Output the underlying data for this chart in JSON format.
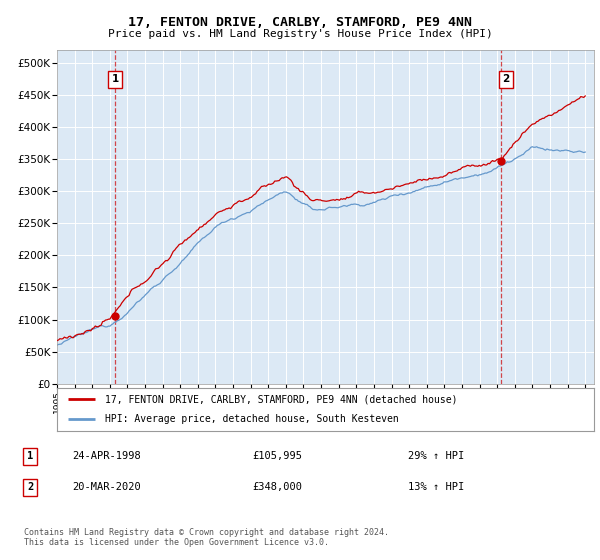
{
  "title": "17, FENTON DRIVE, CARLBY, STAMFORD, PE9 4NN",
  "subtitle": "Price paid vs. HM Land Registry's House Price Index (HPI)",
  "plot_bg_color": "#dce9f5",
  "transaction1": {
    "date": "24-APR-1998",
    "price": 105995,
    "label": "1",
    "year_x": 1998.3
  },
  "transaction2": {
    "date": "20-MAR-2020",
    "price": 348000,
    "label": "2",
    "year_x": 2020.2
  },
  "legend_line1": "17, FENTON DRIVE, CARLBY, STAMFORD, PE9 4NN (detached house)",
  "legend_line2": "HPI: Average price, detached house, South Kesteven",
  "footnote": "Contains HM Land Registry data © Crown copyright and database right 2024.\nThis data is licensed under the Open Government Licence v3.0.",
  "table_rows": [
    {
      "num": "1",
      "date": "24-APR-1998",
      "price": "£105,995",
      "info": "29% ↑ HPI"
    },
    {
      "num": "2",
      "date": "20-MAR-2020",
      "price": "£348,000",
      "info": "13% ↑ HPI"
    }
  ],
  "ylim": [
    0,
    520000
  ],
  "yticks": [
    0,
    50000,
    100000,
    150000,
    200000,
    250000,
    300000,
    350000,
    400000,
    450000,
    500000
  ],
  "red_color": "#cc0000",
  "blue_color": "#6699cc",
  "xmin": 1995,
  "xmax": 2025.5
}
